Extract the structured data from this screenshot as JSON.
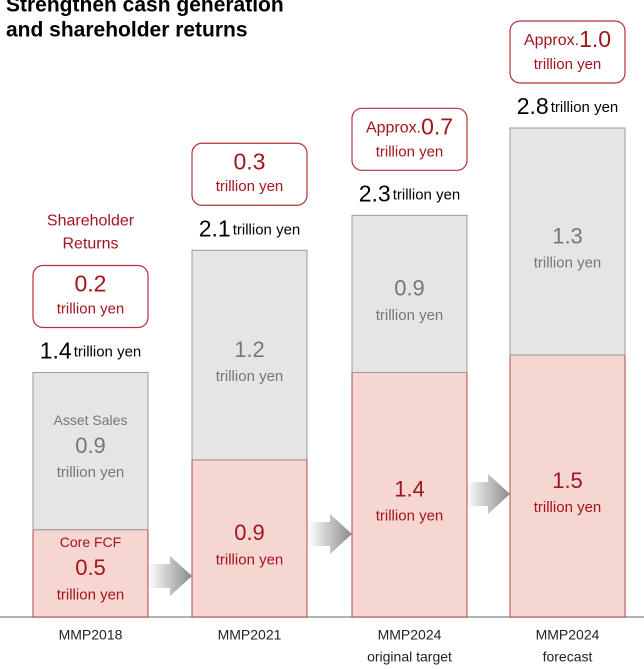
{
  "chart_data": {
    "type": "stacked_bar",
    "title": [
      "Strengthen cash generation",
      "and shareholder returns"
    ],
    "categories": [
      [
        "MMP2018"
      ],
      [
        "MMP2021"
      ],
      [
        "MMP2024",
        "original target"
      ],
      [
        "MMP2024",
        "forecast"
      ]
    ],
    "unit": "trillion yen",
    "series": [
      {
        "name": "Core FCF",
        "color": "#f6d6d1",
        "values": [
          0.5,
          0.9,
          1.4,
          1.5
        ]
      },
      {
        "name": "Asset Sales",
        "color": "#e5e5e5",
        "values": [
          0.9,
          1.2,
          0.9,
          1.3
        ]
      }
    ],
    "totals": [
      1.4,
      2.1,
      2.3,
      2.8
    ],
    "returns_label": [
      "Shareholder",
      "Returns"
    ],
    "returns": [
      0.2,
      0.3,
      0.7,
      1.0
    ],
    "returns_value_labels": [
      "0.2",
      "0.3",
      "0.7",
      "1.0"
    ],
    "returns_prefixes": [
      null,
      null,
      "Approx.",
      "Approx."
    ],
    "ylim": [
      0,
      2.8
    ]
  }
}
